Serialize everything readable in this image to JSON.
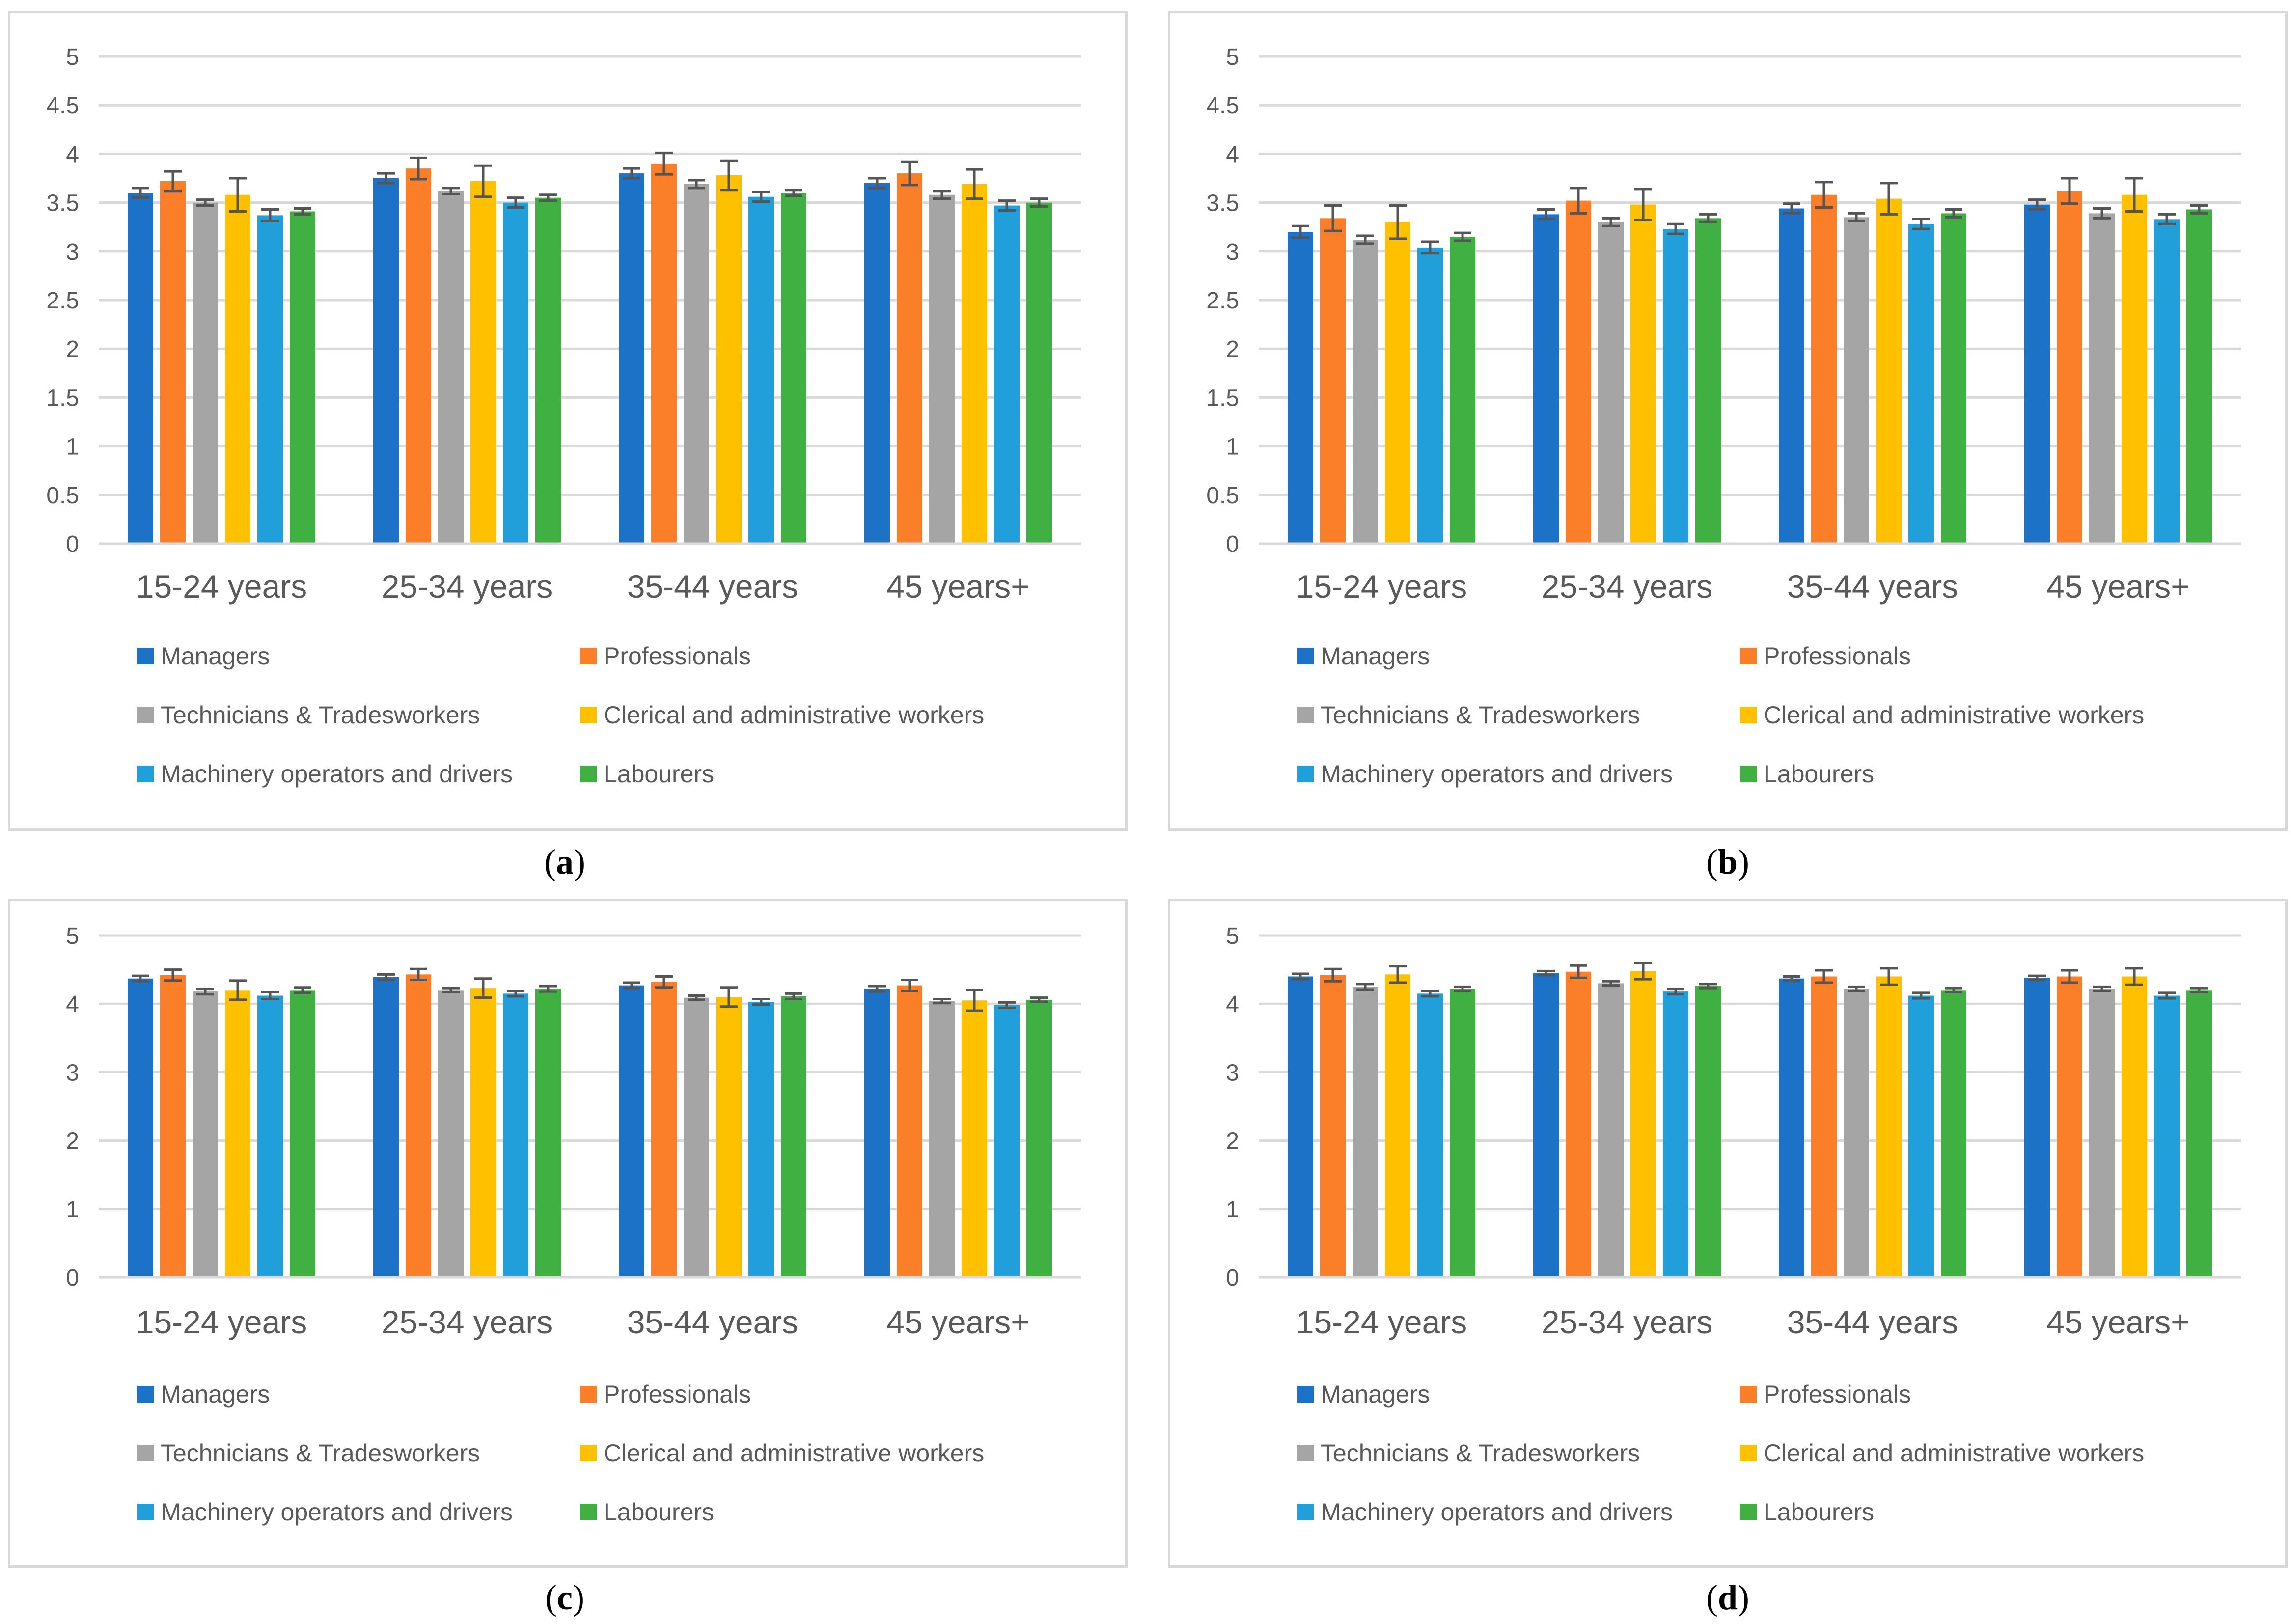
{
  "colors": {
    "managers": "#1b72c7",
    "professionals": "#fb7f29",
    "technicians": "#a5a5a5",
    "clerical": "#ffc000",
    "machinery": "#219fdb",
    "labourers": "#41b043",
    "error_bar": "#555555",
    "grid": "#d9d9d9",
    "axis_text": "#595959"
  },
  "captions": [
    "a",
    "b",
    "c",
    "d"
  ],
  "chart_data": [
    {
      "type": "bar",
      "title": "",
      "xlabel": "",
      "ylabel": "",
      "ylim": [
        0,
        5
      ],
      "yticks": [
        "0",
        "0.5",
        "1",
        "1.5",
        "2",
        "2.5",
        "3",
        "3.5",
        "4",
        "4.5",
        "5"
      ],
      "ytick_values": [
        0,
        0.5,
        1,
        1.5,
        2,
        2.5,
        3,
        3.5,
        4,
        4.5,
        5
      ],
      "categories": [
        "15-24 years",
        "25-34 years",
        "35-44 years",
        "45 years+"
      ],
      "legend_position": "bottom",
      "series": [
        {
          "name": "Managers",
          "values": [
            3.6,
            3.75,
            3.8,
            3.7
          ],
          "errors": [
            0.05,
            0.05,
            0.05,
            0.05
          ]
        },
        {
          "name": "Professionals",
          "values": [
            3.72,
            3.85,
            3.9,
            3.8
          ],
          "errors": [
            0.1,
            0.11,
            0.11,
            0.12
          ]
        },
        {
          "name": "Technicians & Tradesworkers",
          "values": [
            3.5,
            3.62,
            3.69,
            3.58
          ],
          "errors": [
            0.03,
            0.03,
            0.04,
            0.04
          ]
        },
        {
          "name": "Clerical and administrative workers",
          "values": [
            3.58,
            3.72,
            3.78,
            3.69
          ],
          "errors": [
            0.17,
            0.16,
            0.15,
            0.15
          ]
        },
        {
          "name": "Machinery operators and drivers",
          "values": [
            3.37,
            3.5,
            3.56,
            3.47
          ],
          "errors": [
            0.06,
            0.05,
            0.05,
            0.05
          ]
        },
        {
          "name": "Labourers",
          "values": [
            3.41,
            3.55,
            3.6,
            3.5
          ],
          "errors": [
            0.03,
            0.03,
            0.03,
            0.04
          ]
        }
      ]
    },
    {
      "type": "bar",
      "title": "",
      "xlabel": "",
      "ylabel": "",
      "ylim": [
        0,
        5
      ],
      "yticks": [
        "0",
        "0.5",
        "1",
        "1.5",
        "2",
        "2.5",
        "3",
        "3.5",
        "4",
        "4.5",
        "5"
      ],
      "ytick_values": [
        0,
        0.5,
        1,
        1.5,
        2,
        2.5,
        3,
        3.5,
        4,
        4.5,
        5
      ],
      "categories": [
        "15-24 years",
        "25-34 years",
        "35-44 years",
        "45 years+"
      ],
      "legend_position": "bottom",
      "series": [
        {
          "name": "Managers",
          "values": [
            3.2,
            3.38,
            3.44,
            3.48
          ],
          "errors": [
            0.06,
            0.05,
            0.05,
            0.05
          ]
        },
        {
          "name": "Professionals",
          "values": [
            3.34,
            3.52,
            3.58,
            3.62
          ],
          "errors": [
            0.13,
            0.13,
            0.13,
            0.13
          ]
        },
        {
          "name": "Technicians & Tradesworkers",
          "values": [
            3.12,
            3.3,
            3.35,
            3.39
          ],
          "errors": [
            0.04,
            0.04,
            0.04,
            0.05
          ]
        },
        {
          "name": "Clerical and administrative workers",
          "values": [
            3.3,
            3.48,
            3.54,
            3.58
          ],
          "errors": [
            0.17,
            0.16,
            0.16,
            0.17
          ]
        },
        {
          "name": "Machinery operators and drivers",
          "values": [
            3.04,
            3.23,
            3.28,
            3.33
          ],
          "errors": [
            0.06,
            0.05,
            0.05,
            0.05
          ]
        },
        {
          "name": "Labourers",
          "values": [
            3.15,
            3.34,
            3.39,
            3.43
          ],
          "errors": [
            0.04,
            0.04,
            0.04,
            0.04
          ]
        }
      ]
    },
    {
      "type": "bar",
      "title": "",
      "xlabel": "",
      "ylabel": "",
      "ylim": [
        0,
        5
      ],
      "yticks": [
        "0",
        "1",
        "2",
        "3",
        "4",
        "5"
      ],
      "ytick_values": [
        0,
        1,
        2,
        3,
        4,
        5
      ],
      "categories": [
        "15-24 years",
        "25-34 years",
        "35-44 years",
        "45 years+"
      ],
      "legend_position": "bottom",
      "series": [
        {
          "name": "Managers",
          "values": [
            4.37,
            4.39,
            4.27,
            4.22
          ],
          "errors": [
            0.04,
            0.04,
            0.04,
            0.04
          ]
        },
        {
          "name": "Professionals",
          "values": [
            4.42,
            4.43,
            4.32,
            4.27
          ],
          "errors": [
            0.08,
            0.08,
            0.08,
            0.08
          ]
        },
        {
          "name": "Technicians & Tradesworkers",
          "values": [
            4.18,
            4.2,
            4.09,
            4.04
          ],
          "errors": [
            0.04,
            0.03,
            0.03,
            0.03
          ]
        },
        {
          "name": "Clerical and administrative workers",
          "values": [
            4.2,
            4.23,
            4.1,
            4.05
          ],
          "errors": [
            0.14,
            0.14,
            0.14,
            0.15
          ]
        },
        {
          "name": "Machinery operators and drivers",
          "values": [
            4.12,
            4.15,
            4.03,
            3.98
          ],
          "errors": [
            0.05,
            0.04,
            0.04,
            0.04
          ]
        },
        {
          "name": "Labourers",
          "values": [
            4.2,
            4.22,
            4.11,
            4.06
          ],
          "errors": [
            0.04,
            0.04,
            0.04,
            0.03
          ]
        }
      ]
    },
    {
      "type": "bar",
      "title": "",
      "xlabel": "",
      "ylabel": "",
      "ylim": [
        0,
        5
      ],
      "yticks": [
        "0",
        "1",
        "2",
        "3",
        "4",
        "5"
      ],
      "ytick_values": [
        0,
        1,
        2,
        3,
        4,
        5
      ],
      "categories": [
        "15-24 years",
        "25-34 years",
        "35-44 years",
        "45 years+"
      ],
      "legend_position": "bottom",
      "series": [
        {
          "name": "Managers",
          "values": [
            4.4,
            4.45,
            4.37,
            4.38
          ],
          "errors": [
            0.04,
            0.03,
            0.03,
            0.03
          ]
        },
        {
          "name": "Professionals",
          "values": [
            4.42,
            4.47,
            4.4,
            4.4
          ],
          "errors": [
            0.09,
            0.09,
            0.09,
            0.09
          ]
        },
        {
          "name": "Technicians & Tradesworkers",
          "values": [
            4.25,
            4.3,
            4.22,
            4.22
          ],
          "errors": [
            0.04,
            0.03,
            0.03,
            0.03
          ]
        },
        {
          "name": "Clerical and administrative workers",
          "values": [
            4.43,
            4.48,
            4.4,
            4.4
          ],
          "errors": [
            0.12,
            0.12,
            0.12,
            0.12
          ]
        },
        {
          "name": "Machinery operators and drivers",
          "values": [
            4.15,
            4.18,
            4.12,
            4.12
          ],
          "errors": [
            0.04,
            0.04,
            0.04,
            0.04
          ]
        },
        {
          "name": "Labourers",
          "values": [
            4.22,
            4.26,
            4.2,
            4.2
          ],
          "errors": [
            0.03,
            0.03,
            0.03,
            0.03
          ]
        }
      ]
    }
  ]
}
